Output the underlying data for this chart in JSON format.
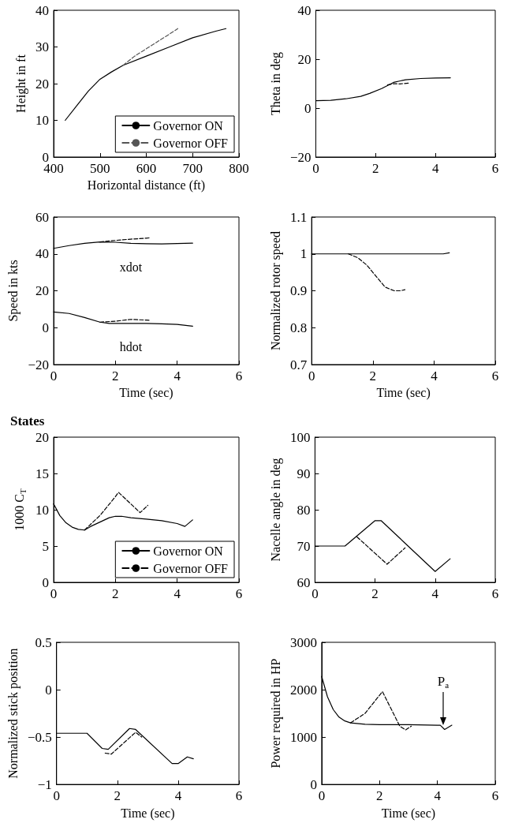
{
  "chart_data": [
    {
      "type": "line",
      "xlabel": "Horizontal distance (ft)",
      "ylabel": "Height in ft",
      "xlim": [
        400,
        800
      ],
      "xticks": [
        400,
        500,
        600,
        700,
        800
      ],
      "ylim": [
        0,
        40
      ],
      "yticks": [
        0,
        10,
        20,
        30,
        40
      ],
      "marker": "none",
      "legend": "bottom right",
      "series": [
        {
          "name": "Governor ON",
          "color": "#000000",
          "line_style": "solid",
          "x": [
            425,
            450,
            475,
            500,
            525,
            550,
            600,
            650,
            700,
            750,
            772
          ],
          "values": [
            10,
            14,
            18,
            21.2,
            23.2,
            25,
            27.5,
            30,
            32.5,
            34.3,
            35
          ]
        },
        {
          "name": "Governor OFF",
          "color": "#555555",
          "line_style": "dashed",
          "x": [
            550,
            575,
            600,
            625,
            650,
            668
          ],
          "values": [
            25,
            27.5,
            29.5,
            31.5,
            33.5,
            35
          ]
        }
      ]
    },
    {
      "type": "line",
      "ylabel": "Theta in deg",
      "xlim": [
        0,
        6
      ],
      "xticks": [
        0,
        2,
        4,
        6
      ],
      "ylim": [
        -20,
        40
      ],
      "yticks": [
        -20,
        0,
        20,
        40
      ],
      "marker": "none",
      "series": [
        {
          "color": "#000000",
          "line_style": "solid",
          "x": [
            0,
            0.5,
            1,
            1.5,
            1.8,
            2.2,
            2.6,
            3,
            3.5,
            4,
            4.5
          ],
          "values": [
            3,
            3.2,
            3.8,
            4.8,
            6,
            8,
            10.5,
            11.6,
            12.1,
            12.3,
            12.4
          ]
        },
        {
          "color": "#000000",
          "line_style": "dashed",
          "x": [
            2.4,
            2.6,
            2.8,
            3.1
          ],
          "values": [
            9.5,
            10,
            9.9,
            10.2
          ]
        }
      ]
    },
    {
      "type": "line",
      "xlabel": "Time (sec)",
      "ylabel": "Speed in kts",
      "xlim": [
        0,
        6
      ],
      "xticks": [
        0,
        2,
        4,
        6
      ],
      "ylim": [
        -20,
        60
      ],
      "yticks": [
        -20,
        0,
        20,
        40,
        60
      ],
      "marker": "none",
      "series": [
        {
          "name": "xdot",
          "color": "#000000",
          "line_style": "solid",
          "x": [
            0,
            0.5,
            1,
            1.5,
            2,
            2.5,
            3,
            3.5,
            4,
            4.5
          ],
          "values": [
            43,
            44.5,
            45.7,
            46.5,
            46.3,
            45.7,
            45.5,
            45.4,
            45.6,
            45.8
          ]
        },
        {
          "color": "#000000",
          "line_style": "dashed",
          "x": [
            1.5,
            2,
            2.5,
            3,
            3.1
          ],
          "values": [
            46.5,
            47.3,
            48,
            48.5,
            48.7
          ]
        },
        {
          "name": "hdot",
          "color": "#000000",
          "line_style": "solid",
          "x": [
            0,
            0.5,
            1,
            1.5,
            1.8,
            2.5,
            3,
            3.5,
            4,
            4.5
          ],
          "values": [
            8.5,
            7.7,
            5.5,
            3,
            2.3,
            2.3,
            2.3,
            2.1,
            1.8,
            0.8
          ]
        },
        {
          "color": "#000000",
          "line_style": "dashed",
          "x": [
            1.5,
            2,
            2.5,
            3,
            3.1
          ],
          "values": [
            3,
            3.5,
            4.5,
            4.1,
            4
          ]
        }
      ]
    },
    {
      "type": "line",
      "xlabel": "Time (sec)",
      "ylabel": "Normalized rotor speed",
      "xlim": [
        0,
        6
      ],
      "xticks": [
        0,
        2,
        4,
        6
      ],
      "ylim": [
        0.7,
        1.1
      ],
      "yticks": [
        0.7,
        0.8,
        0.9,
        1,
        1.1
      ],
      "marker": "none",
      "series": [
        {
          "color": "#000000",
          "line_style": "solid",
          "x": [
            0,
            4.3,
            4.5
          ],
          "values": [
            1,
            1,
            1.003
          ]
        },
        {
          "color": "#000000",
          "line_style": "dashed",
          "x": [
            1.2,
            1.5,
            1.8,
            2.1,
            2.4,
            2.7,
            2.9,
            3.05
          ],
          "values": [
            1,
            0.99,
            0.97,
            0.94,
            0.91,
            0.9,
            0.9,
            0.903
          ]
        }
      ]
    },
    {
      "type": "line",
      "title": "States",
      "ylabel": "1000 C$_{T}$",
      "xlim": [
        0,
        6
      ],
      "xticks": [
        0,
        2,
        4,
        6
      ],
      "ylim": [
        0,
        20
      ],
      "yticks": [
        0,
        5,
        10,
        15,
        20
      ],
      "marker": "none",
      "legend": "bottom right",
      "series": [
        {
          "name": "Governor ON",
          "color": "#000000",
          "line_style": "solid",
          "x": [
            0,
            0.2,
            0.4,
            0.6,
            0.8,
            1,
            1.2,
            1.5,
            1.8,
            2,
            2.2,
            2.5,
            3,
            3.5,
            4,
            4.25,
            4.5
          ],
          "values": [
            10.8,
            9.2,
            8.2,
            7.6,
            7.3,
            7.2,
            7.7,
            8.3,
            8.9,
            9.1,
            9.1,
            8.9,
            8.7,
            8.5,
            8.1,
            7.7,
            8.6
          ]
        },
        {
          "name": "Governor OFF",
          "color": "#000000",
          "line_style": "dashed",
          "x": [
            1,
            1.5,
            2,
            2.1,
            2.5,
            2.8,
            3.05
          ],
          "values": [
            7.2,
            9.2,
            11.8,
            12.4,
            10.8,
            9.6,
            10.6
          ]
        }
      ]
    },
    {
      "type": "line",
      "ylabel": "Nacelle angle in deg",
      "xlim": [
        0,
        6
      ],
      "xticks": [
        0,
        2,
        4,
        6
      ],
      "ylim": [
        60,
        100
      ],
      "yticks": [
        60,
        70,
        80,
        90,
        100
      ],
      "marker": "none",
      "series": [
        {
          "color": "#000000",
          "line_style": "solid",
          "x": [
            0,
            1,
            2,
            2.2,
            4,
            4.5
          ],
          "values": [
            70,
            70,
            77,
            77,
            63,
            66.5
          ]
        },
        {
          "color": "#000000",
          "line_style": "dashed",
          "x": [
            1.4,
            2.4,
            3
          ],
          "values": [
            72.5,
            65,
            69.5
          ]
        }
      ]
    },
    {
      "type": "line",
      "xlabel": "Time (sec)",
      "ylabel": "Normalized stick position",
      "xlim": [
        0,
        6
      ],
      "xticks": [
        0,
        2,
        4,
        6
      ],
      "ylim": [
        -1,
        0.5
      ],
      "yticks": [
        -1,
        -0.5,
        0,
        0.5
      ],
      "marker": "none",
      "series": [
        {
          "color": "#000000",
          "line_style": "solid",
          "x": [
            0,
            1,
            1.5,
            1.7,
            2.4,
            2.6,
            3.8,
            4,
            4.3,
            4.5
          ],
          "values": [
            -0.46,
            -0.46,
            -0.62,
            -0.63,
            -0.41,
            -0.42,
            -0.78,
            -0.78,
            -0.71,
            -0.73
          ]
        },
        {
          "color": "#000000",
          "line_style": "dashed",
          "x": [
            1.6,
            1.8,
            2.6,
            2.8
          ],
          "values": [
            -0.67,
            -0.68,
            -0.45,
            -0.5
          ]
        }
      ]
    },
    {
      "type": "line",
      "xlabel": "Time (sec)",
      "ylabel": "Power required in HP",
      "xlim": [
        0,
        6
      ],
      "xticks": [
        0,
        2,
        4,
        6
      ],
      "ylim": [
        0,
        3000
      ],
      "yticks": [
        0,
        1000,
        2000,
        3000
      ],
      "marker": "none",
      "annotations": [
        {
          "text": "P$_{a}$",
          "x": 4.2,
          "y": 1250
        }
      ],
      "series": [
        {
          "color": "#000000",
          "line_style": "solid",
          "x": [
            0,
            0.2,
            0.4,
            0.6,
            0.8,
            1,
            1.5,
            2,
            3,
            4,
            4.1,
            4.25,
            4.5
          ],
          "values": [
            2280,
            1850,
            1580,
            1420,
            1340,
            1300,
            1270,
            1260,
            1260,
            1250,
            1250,
            1160,
            1250
          ]
        },
        {
          "color": "#000000",
          "line_style": "dashed",
          "x": [
            1,
            1.5,
            2.1,
            2.7,
            2.9,
            3.1
          ],
          "values": [
            1300,
            1500,
            1960,
            1230,
            1150,
            1230
          ]
        }
      ]
    }
  ]
}
